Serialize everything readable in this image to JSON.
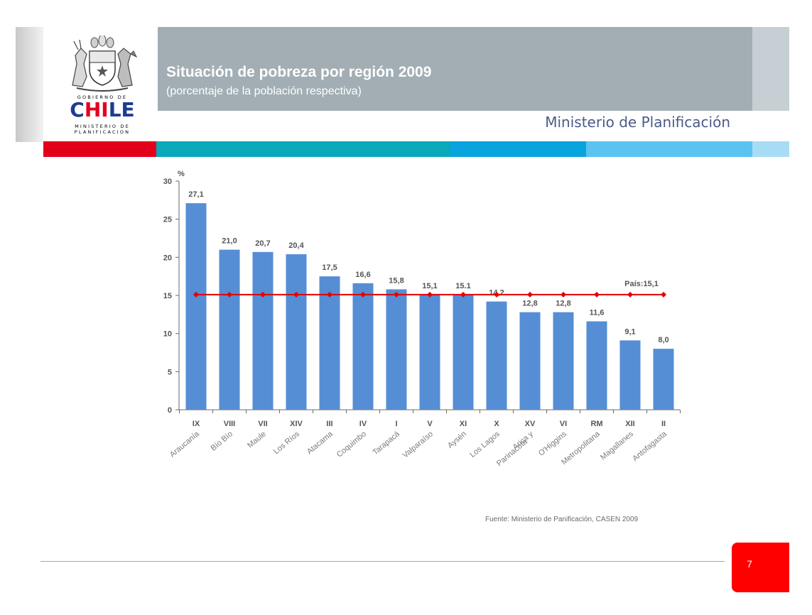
{
  "header": {
    "title": "Situación de pobreza por región 2009",
    "subtitle": "(porcentaje de la población respectiva)",
    "ministry": "Ministerio de Planificación"
  },
  "logo": {
    "top_text": "GOBIERNO DE",
    "name": "CHILE",
    "bottom_text_1": "MINISTERIO DE",
    "bottom_text_2": "PLANIFICACION"
  },
  "chart_data": {
    "type": "bar",
    "ylabel": "%",
    "ylim": [
      0,
      30
    ],
    "yticks": [
      0,
      5,
      10,
      15,
      20,
      25,
      30
    ],
    "codes": [
      "IX",
      "VIII",
      "VII",
      "XIV",
      "III",
      "IV",
      "I",
      "V",
      "XI",
      "X",
      "XV",
      "VI",
      "RM",
      "XII",
      "II"
    ],
    "categories": [
      "Araucanía",
      "Bío Bío",
      "Maule",
      "Los Ríos",
      "Atacama",
      "Coquimbo",
      "Tarapacá",
      "Valparaíso",
      "Aysén",
      "Los Lagos",
      "Arica y Parinacota",
      "O'Higgins",
      "Metropolitana",
      "Magallanes",
      "Antofagasta"
    ],
    "values": [
      27.1,
      21.0,
      20.7,
      20.4,
      17.5,
      16.6,
      15.8,
      15.1,
      15.1,
      14.2,
      12.8,
      12.8,
      11.6,
      9.1,
      8.0
    ],
    "value_labels": [
      "27,1",
      "21,0",
      "20,7",
      "20,4",
      "17,5",
      "16,6",
      "15,8",
      "15,1",
      "15.1",
      "14,2",
      "12,8",
      "12,8",
      "11,6",
      "9,1",
      "8,0"
    ],
    "reference_line": {
      "label": "País:15,1",
      "value": 15.1,
      "color": "#e60000"
    },
    "bar_color": "#558ed5",
    "grid": false
  },
  "footer": {
    "source": "Fuente: Ministerio de Panificación, CASEN 2009",
    "page_number": "7"
  },
  "colors": {
    "accent_red": "#e3001b",
    "title_band": "#a2aeb3",
    "ministry_text": "#4b5b88"
  }
}
